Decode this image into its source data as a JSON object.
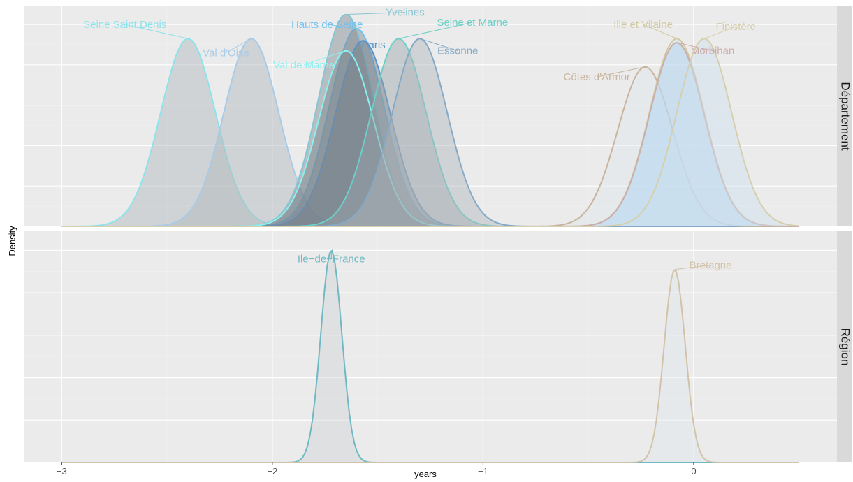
{
  "chart_data": {
    "type": "area",
    "xlabel": "years",
    "ylabel": "Density",
    "xlim": [
      -3.18,
      0.68
    ],
    "x_ticks": [
      -3,
      -2,
      -1,
      0
    ],
    "x_tick_labels": [
      "−3",
      "−2",
      "−1",
      "0"
    ],
    "grid": true,
    "legend": "none",
    "x_range": [
      -3,
      0.5
    ],
    "panels": [
      {
        "name": "Département",
        "ylim": [
          0,
          1.09
        ],
        "series": [
          {
            "name": "Seine Saint Denis",
            "mean": -2.4,
            "sd": 0.13,
            "peak": 0.93,
            "color": "#8ee3ea",
            "fill": "#b0b6ba",
            "label_x": -2.7,
            "label_y": 1.0
          },
          {
            "name": "Val d'Oise",
            "mean": -2.1,
            "sd": 0.13,
            "peak": 0.93,
            "color": "#a8cbe8",
            "fill": "#b0b6ba",
            "label_x": -2.22,
            "label_y": 0.86
          },
          {
            "name": "Hauts de Seine",
            "mean": -1.6,
            "sd": 0.13,
            "peak": 0.98,
            "color": "#74c2f0",
            "fill": "#7a858f",
            "label_x": -1.74,
            "label_y": 1.0
          },
          {
            "name": "Yvelines",
            "mean": -1.65,
            "sd": 0.13,
            "peak": 1.05,
            "color": "#88c5d2",
            "fill": "#7a858f",
            "label_x": -1.37,
            "label_y": 1.06
          },
          {
            "name": "Paris",
            "mean": -1.57,
            "sd": 0.13,
            "peak": 0.92,
            "color": "#5d93c8",
            "fill": "#6a7786",
            "label_x": -1.52,
            "label_y": 0.9
          },
          {
            "name": "Val de Marne",
            "mean": -1.65,
            "sd": 0.13,
            "peak": 0.87,
            "color": "#8bf0f0",
            "fill": "#7a858f",
            "label_x": -1.85,
            "label_y": 0.8
          },
          {
            "name": "Seine et Marne",
            "mean": -1.4,
            "sd": 0.13,
            "peak": 0.93,
            "color": "#6ccfc8",
            "fill": "#9aa3ab",
            "label_x": -1.05,
            "label_y": 1.01
          },
          {
            "name": "Essonne",
            "mean": -1.3,
            "sd": 0.13,
            "peak": 0.93,
            "color": "#85a9c6",
            "fill": "#b0b6ba",
            "label_x": -1.12,
            "label_y": 0.87
          },
          {
            "name": "Côtes d'Armor",
            "mean": -0.23,
            "sd": 0.13,
            "peak": 0.79,
            "color": "#c8b49c",
            "fill": "#dfe7ec",
            "label_x": -0.46,
            "label_y": 0.74
          },
          {
            "name": "Ille et Vilaine",
            "mean": -0.08,
            "sd": 0.13,
            "peak": 0.93,
            "color": "#d1caa0",
            "fill": "#cde0ee",
            "label_x": -0.24,
            "label_y": 1.0
          },
          {
            "name": "Morbihan",
            "mean": -0.08,
            "sd": 0.13,
            "peak": 0.91,
            "color": "#cbadab",
            "fill": "#b3d5f2",
            "label_x": 0.09,
            "label_y": 0.87
          },
          {
            "name": "Finistère",
            "mean": 0.05,
            "sd": 0.13,
            "peak": 0.93,
            "color": "#d6cfad",
            "fill": "#cde0ee",
            "label_x": 0.2,
            "label_y": 0.99
          }
        ]
      },
      {
        "name": "Région",
        "ylim": [
          0,
          1.09
        ],
        "series": [
          {
            "name": "Ile−de−France",
            "mean": -1.72,
            "sd": 0.05,
            "peak": 1.0,
            "color": "#6fb9c3",
            "fill": "#ced3d6",
            "label_x": -1.72,
            "label_y": 0.96
          },
          {
            "name": "Bretagne",
            "mean": -0.09,
            "sd": 0.05,
            "peak": 0.91,
            "color": "#d2c3a8",
            "fill": "#dfe7ec",
            "label_x": 0.08,
            "label_y": 0.93
          }
        ]
      }
    ]
  }
}
